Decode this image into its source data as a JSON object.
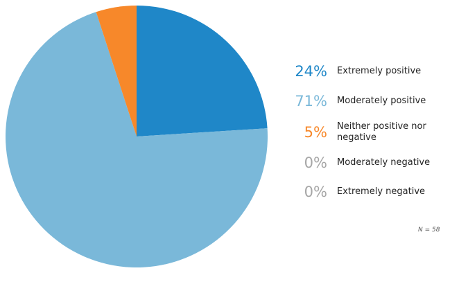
{
  "chart_data": {
    "type": "pie",
    "categories": [
      "Extremely positive",
      "Moderately positive",
      "Neither positive nor negative",
      "Moderately negative",
      "Extremely negative"
    ],
    "values": [
      24,
      71,
      5,
      0,
      0
    ],
    "value_labels": [
      "24%",
      "71%",
      "5%",
      "0%",
      "0%"
    ],
    "colors": [
      "#1f87c8",
      "#7ab8d9",
      "#f7882a",
      "#a6a6a6",
      "#a6a6a6"
    ],
    "annotation": "N = 58"
  }
}
